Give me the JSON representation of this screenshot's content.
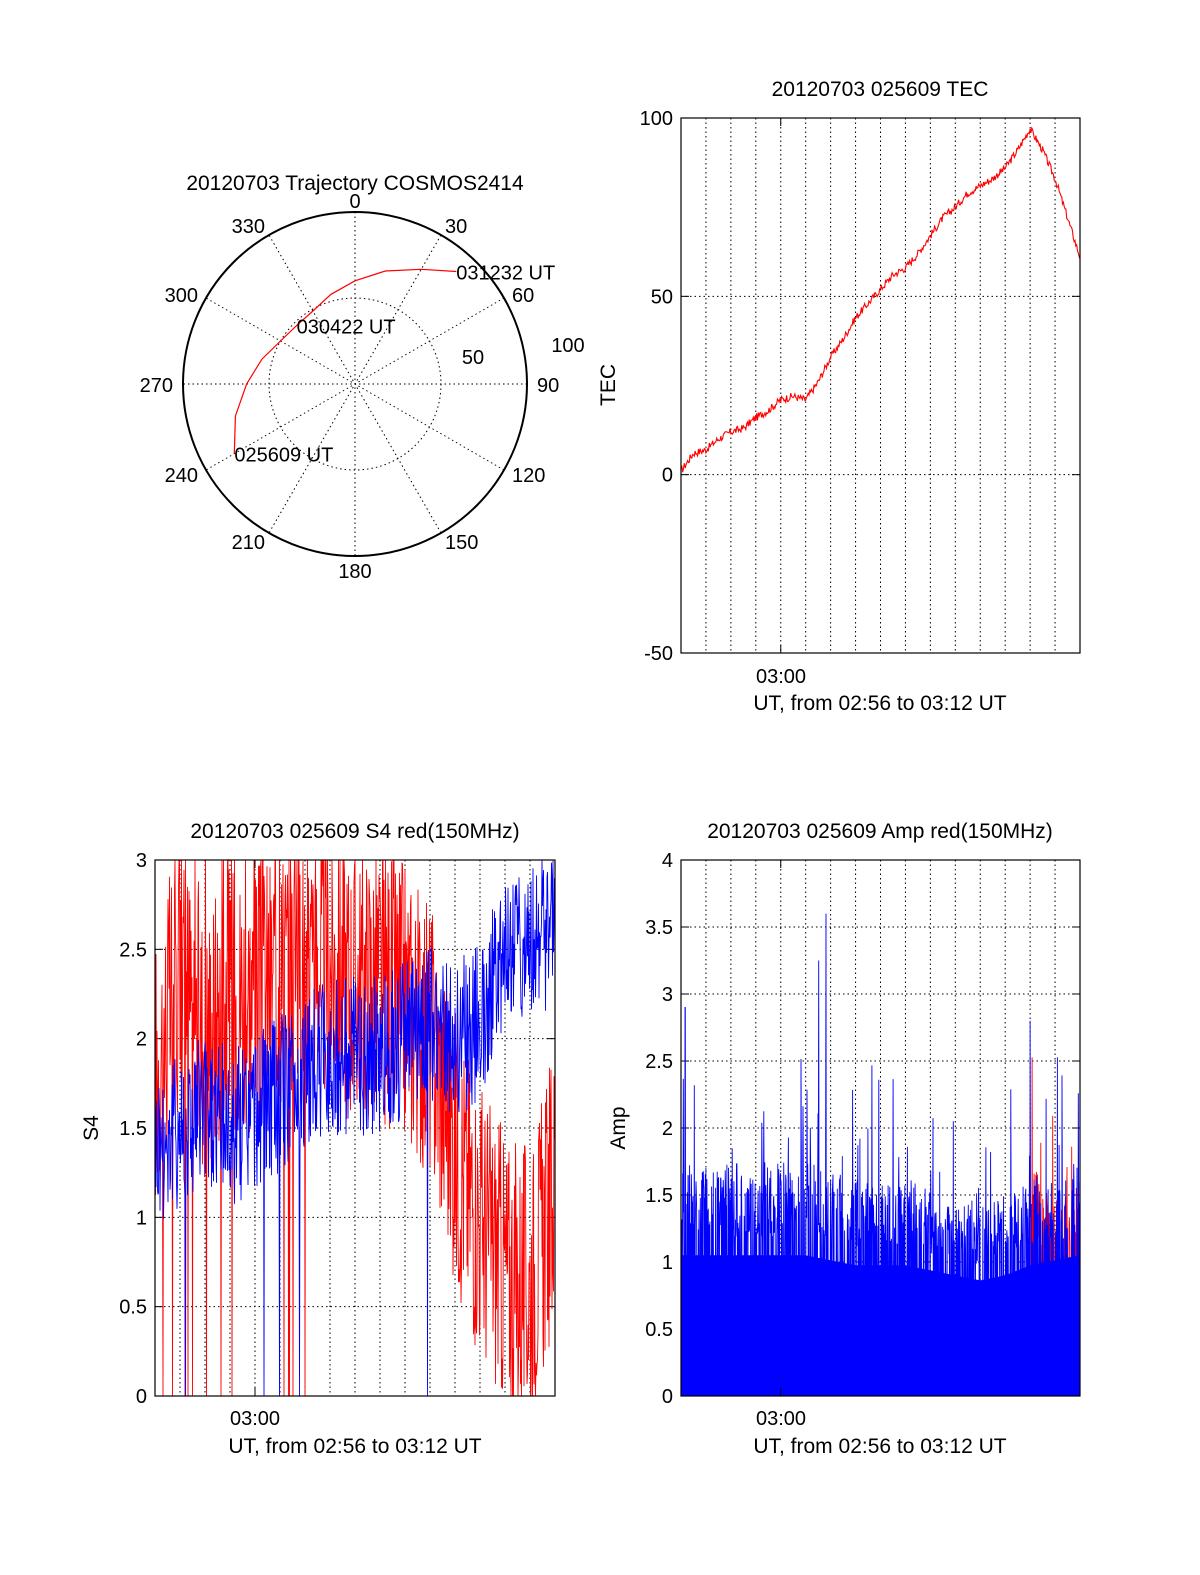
{
  "colors": {
    "red": "#ff0000",
    "blue": "#0000ff",
    "axis": "#000000"
  },
  "chart_data": [
    {
      "id": "trajectory",
      "type": "polar",
      "title": "20120703 Trajectory COSMOS2414",
      "azimuth_labels": [
        "0",
        "30",
        "60",
        "90",
        "120",
        "150",
        "180",
        "210",
        "240",
        "270",
        "300",
        "330"
      ],
      "radial_labels": [
        "50",
        "100"
      ],
      "trajectory": {
        "color": "red",
        "points": [
          {
            "az": 240,
            "r": 81
          },
          {
            "az": 255,
            "r": 72
          },
          {
            "az": 270,
            "r": 63
          },
          {
            "az": 285,
            "r": 56
          },
          {
            "az": 300,
            "r": 50
          },
          {
            "az": 315,
            "r": 48
          },
          {
            "az": 330,
            "r": 49
          },
          {
            "az": 345,
            "r": 54
          },
          {
            "az": 0,
            "r": 60
          },
          {
            "az": 15,
            "r": 68
          },
          {
            "az": 30,
            "r": 77
          },
          {
            "az": 42,
            "r": 88
          }
        ]
      },
      "annotations": [
        {
          "text": "031232 UT",
          "az": 42,
          "r": 88
        },
        {
          "text": "030422 UT",
          "az": 315,
          "r": 48
        },
        {
          "text": "025609 UT",
          "az": 240,
          "r": 81
        }
      ]
    },
    {
      "id": "tec",
      "type": "line",
      "title": "20120703 025609 TEC",
      "ylabel": "TEC",
      "xtick_label": "03:00",
      "xlabel": "UT, from 02:56 to 03:12 UT",
      "ylim": [
        -50,
        100
      ],
      "yticks": [
        -50,
        0,
        50,
        100
      ],
      "series": [
        {
          "color": "red",
          "x_sec": [
            0,
            30,
            60,
            90,
            120,
            150,
            180,
            210,
            240,
            270,
            300,
            330,
            360,
            390,
            420,
            450,
            480,
            510,
            540,
            570,
            600,
            630,
            660,
            690,
            720,
            750,
            780,
            810,
            840,
            870,
            900,
            930,
            960
          ],
          "values": [
            1,
            6,
            7,
            10,
            12,
            13,
            16,
            18,
            21,
            22,
            21,
            26,
            33,
            38,
            44,
            48,
            52,
            56,
            58,
            62,
            67,
            72,
            75,
            79,
            81,
            83,
            86,
            91,
            97,
            91,
            83,
            72,
            61
          ]
        }
      ]
    },
    {
      "id": "s4",
      "type": "line",
      "title": "20120703 025609 S4 red(150MHz)",
      "ylabel": "S4",
      "xtick_label": "03:00",
      "xlabel": "UT, from 02:56 to 03:12 UT",
      "ylim": [
        0,
        3
      ],
      "yticks": [
        "0",
        "0.5",
        "1",
        "1.5",
        "2",
        "2.5",
        "3"
      ],
      "series": [
        {
          "color": "red",
          "x_sec": [
            0,
            60,
            120,
            180,
            240,
            300,
            360,
            420,
            480,
            540,
            600,
            660,
            720,
            780,
            840,
            900,
            960
          ],
          "values": [
            1.8,
            2.4,
            2.0,
            2.3,
            2.2,
            2.4,
            2.4,
            2.4,
            2.3,
            2.3,
            2.2,
            2.0,
            1.4,
            1.0,
            0.7,
            0.6,
            1.2
          ]
        },
        {
          "color": "blue",
          "x_sec": [
            0,
            60,
            120,
            180,
            240,
            300,
            360,
            420,
            480,
            540,
            600,
            660,
            720,
            780,
            840,
            900,
            960
          ],
          "values": [
            1.4,
            1.5,
            1.6,
            1.5,
            1.6,
            1.7,
            1.8,
            1.9,
            1.9,
            1.9,
            2.0,
            2.1,
            2.0,
            2.1,
            2.5,
            2.6,
            2.6
          ]
        }
      ]
    },
    {
      "id": "amp",
      "type": "line",
      "title": "20120703 025609 Amp red(150MHz)",
      "ylabel": "Amp",
      "xtick_label": "03:00",
      "xlabel": "UT, from 02:56 to 03:12 UT",
      "ylim": [
        0,
        4
      ],
      "yticks": [
        "0",
        "0.5",
        "1",
        "1.5",
        "2",
        "2.5",
        "3",
        "3.5",
        "4"
      ],
      "series": [
        {
          "color": "red",
          "x_sec": [
            840,
            870,
            900,
            930,
            960
          ],
          "values": [
            1.4,
            1.3,
            1.2,
            1.2,
            1.3
          ]
        },
        {
          "color": "blue",
          "x_sec": [
            0,
            60,
            120,
            180,
            240,
            300,
            360,
            420,
            480,
            540,
            600,
            660,
            720,
            780,
            840,
            900,
            960
          ],
          "values": [
            1.4,
            1.4,
            1.4,
            1.4,
            1.4,
            1.4,
            1.35,
            1.3,
            1.3,
            1.3,
            1.25,
            1.2,
            1.15,
            1.2,
            1.3,
            1.35,
            1.4
          ],
          "peaks": [
            {
              "x_sec": 349,
              "value": 3.6
            },
            {
              "x_sec": 331,
              "value": 3.25
            },
            {
              "x_sec": 10,
              "value": 2.9
            },
            {
              "x_sec": 840,
              "value": 2.8
            }
          ]
        }
      ]
    }
  ]
}
